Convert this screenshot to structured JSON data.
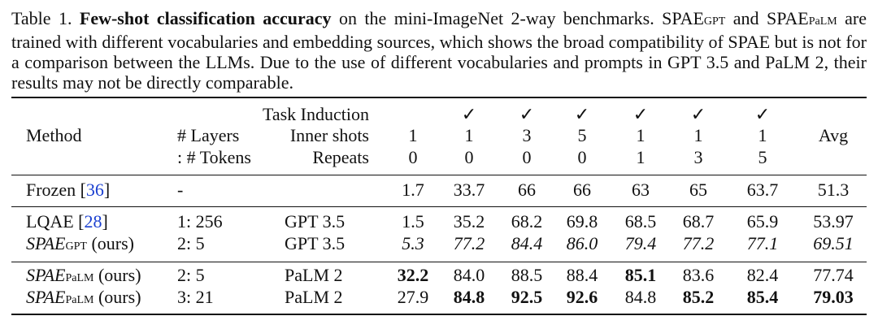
{
  "caption": {
    "label": "Table 1.",
    "title": "Few-shot classification accuracy",
    "text_1": " on the mini-ImageNet 2-way benchmarks. SPAE",
    "sub_1": "GPT",
    "text_2": " and SPAE",
    "sub_2": "PaLM",
    "text_3": " are trained with different vocabularies and embedding sources, which shows the broad compatibility of SPAE but is not for a comparison between the LLMs. Due to the use of different vocabularies and prompts in GPT 3.5 and PaLM 2, their results may not be directly comparable."
  },
  "header": {
    "method": "Method",
    "layers": "# Layers",
    "tokens": ": # Tokens",
    "task_induction": "Task Induction",
    "inner_shots": "Inner shots",
    "repeats": "Repeats",
    "avg": "Avg",
    "task_marks": [
      "",
      "✓",
      "✓",
      "✓",
      "✓",
      "✓",
      "✓"
    ],
    "shots": [
      "1",
      "1",
      "3",
      "5",
      "1",
      "1",
      "1"
    ],
    "repeat_vals": [
      "0",
      "0",
      "0",
      "0",
      "1",
      "3",
      "5"
    ]
  },
  "rows": [
    {
      "method": "Frozen [",
      "cite": "36",
      "method_end": "]",
      "layers": "-",
      "llm": "",
      "values": [
        "1.7",
        "33.7",
        "66",
        "66",
        "63",
        "65",
        "63.7"
      ],
      "avg": "51.3"
    },
    {
      "method": "LQAE [",
      "cite": "28",
      "method_end": "]",
      "layers": "1: 256",
      "llm": "GPT 3.5",
      "values": [
        "1.5",
        "35.2",
        "68.2",
        "69.8",
        "68.5",
        "68.7",
        "65.9"
      ],
      "avg": "53.97"
    },
    {
      "method": "SPAE",
      "method_sub": "GPT",
      "method_suffix": " (ours)",
      "layers": "2: 5",
      "llm": "GPT 3.5",
      "values": [
        "5.3",
        "77.2",
        "84.4",
        "86.0",
        "79.4",
        "77.2",
        "77.1"
      ],
      "avg": "69.51"
    },
    {
      "method": "SPAE",
      "method_sub": "PaLM",
      "method_suffix": " (ours)",
      "layers": "2: 5",
      "llm": "PaLM 2",
      "values": [
        "32.2",
        "84.0",
        "88.5",
        "88.4",
        "85.1",
        "83.6",
        "82.4"
      ],
      "avg": "77.74"
    },
    {
      "method": "SPAE",
      "method_sub": "PaLM",
      "method_suffix": " (ours)",
      "layers": "3: 21",
      "llm": "PaLM 2",
      "values": [
        "27.9",
        "84.8",
        "92.5",
        "92.6",
        "84.8",
        "85.2",
        "85.4"
      ],
      "avg": "79.03"
    }
  ]
}
